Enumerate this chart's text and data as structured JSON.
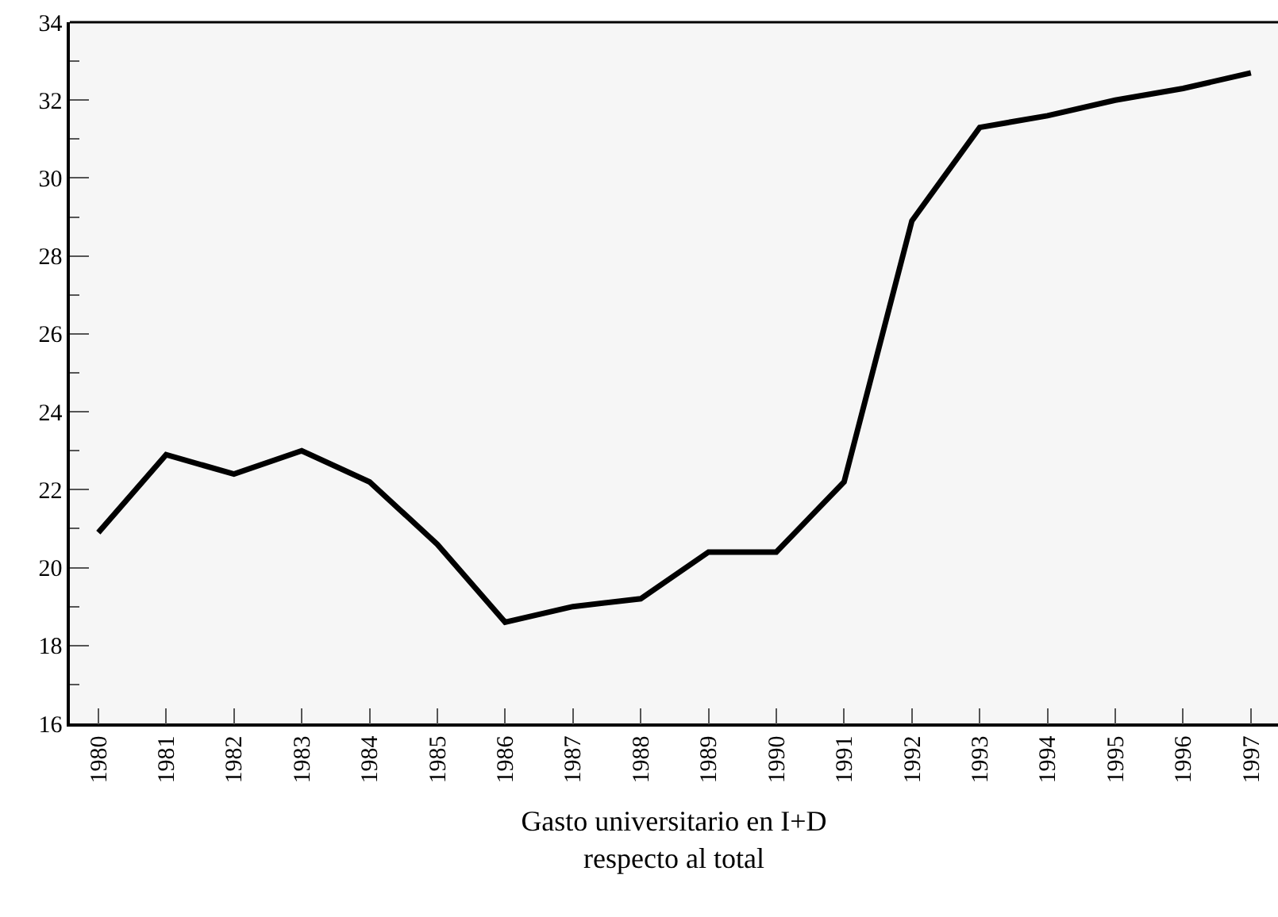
{
  "chart_data": {
    "type": "line",
    "xlabel": "Gasto universitario en I+D\nrespecto al total",
    "categories": [
      "1980",
      "1981",
      "1982",
      "1983",
      "1984",
      "1985",
      "1986",
      "1987",
      "1988",
      "1989",
      "1990",
      "1991",
      "1992",
      "1993",
      "1994",
      "1995",
      "1996",
      "1997"
    ],
    "series": [
      {
        "color": "#000000",
        "values": [
          20.9,
          22.9,
          22.4,
          23.0,
          22.2,
          20.6,
          18.6,
          19.0,
          19.2,
          20.4,
          20.4,
          22.2,
          28.9,
          31.3,
          31.6,
          32.0,
          32.3,
          32.7
        ]
      }
    ],
    "ylim": [
      16,
      34
    ],
    "yticks": [
      16,
      {
        "value": 17,
        "label": null
      },
      18,
      {
        "value": 19,
        "label": null
      },
      20,
      {
        "value": 21,
        "label": null
      },
      22,
      {
        "value": 23,
        "label": null
      },
      24,
      {
        "value": 25,
        "label": null
      },
      26,
      {
        "value": 27,
        "label": null
      },
      28,
      {
        "value": 29,
        "label": null
      },
      30,
      {
        "value": 31,
        "label": null
      },
      32,
      {
        "value": 33,
        "label": null
      },
      34
    ],
    "marker": "none",
    "line_style": "solid"
  }
}
